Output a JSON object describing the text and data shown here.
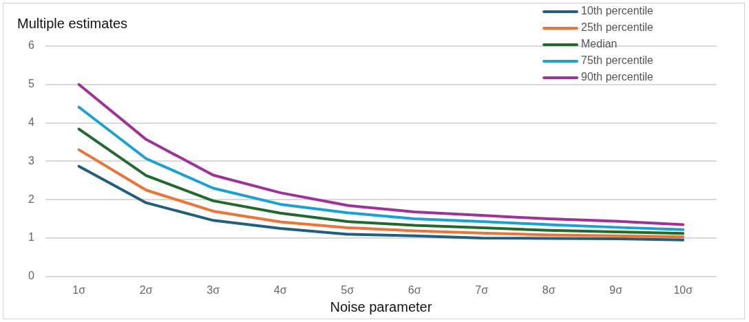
{
  "chart_data": {
    "type": "line",
    "title": "Multiple estimates",
    "xlabel": "Noise parameter",
    "categories": [
      "1σ",
      "2σ",
      "3σ",
      "4σ",
      "5σ",
      "6σ",
      "7σ",
      "8σ",
      "9σ",
      "10σ"
    ],
    "series": [
      {
        "name": "10th percentile",
        "color": "#1f5f82",
        "values": [
          2.87,
          1.92,
          1.46,
          1.25,
          1.1,
          1.06,
          1.0,
          0.99,
          0.98,
          0.95
        ]
      },
      {
        "name": "25th percentile",
        "color": "#ed7434",
        "values": [
          3.3,
          2.25,
          1.7,
          1.42,
          1.27,
          1.19,
          1.13,
          1.08,
          1.06,
          1.03
        ]
      },
      {
        "name": "Median",
        "color": "#1e6b2c",
        "values": [
          3.84,
          2.63,
          1.97,
          1.65,
          1.43,
          1.33,
          1.27,
          1.2,
          1.16,
          1.12
        ]
      },
      {
        "name": "75th percentile",
        "color": "#16a2d8",
        "values": [
          4.41,
          3.07,
          2.3,
          1.88,
          1.66,
          1.5,
          1.43,
          1.35,
          1.28,
          1.22
        ]
      },
      {
        "name": "90th percentile",
        "color": "#a0309a",
        "values": [
          5.0,
          3.57,
          2.64,
          2.18,
          1.85,
          1.68,
          1.59,
          1.5,
          1.44,
          1.35
        ]
      }
    ],
    "ylim": [
      0,
      6
    ],
    "yticks": [
      0,
      1,
      2,
      3,
      4,
      5,
      6
    ],
    "grid": "y",
    "legend": "top right",
    "marker": "none",
    "line_style": "solid"
  }
}
